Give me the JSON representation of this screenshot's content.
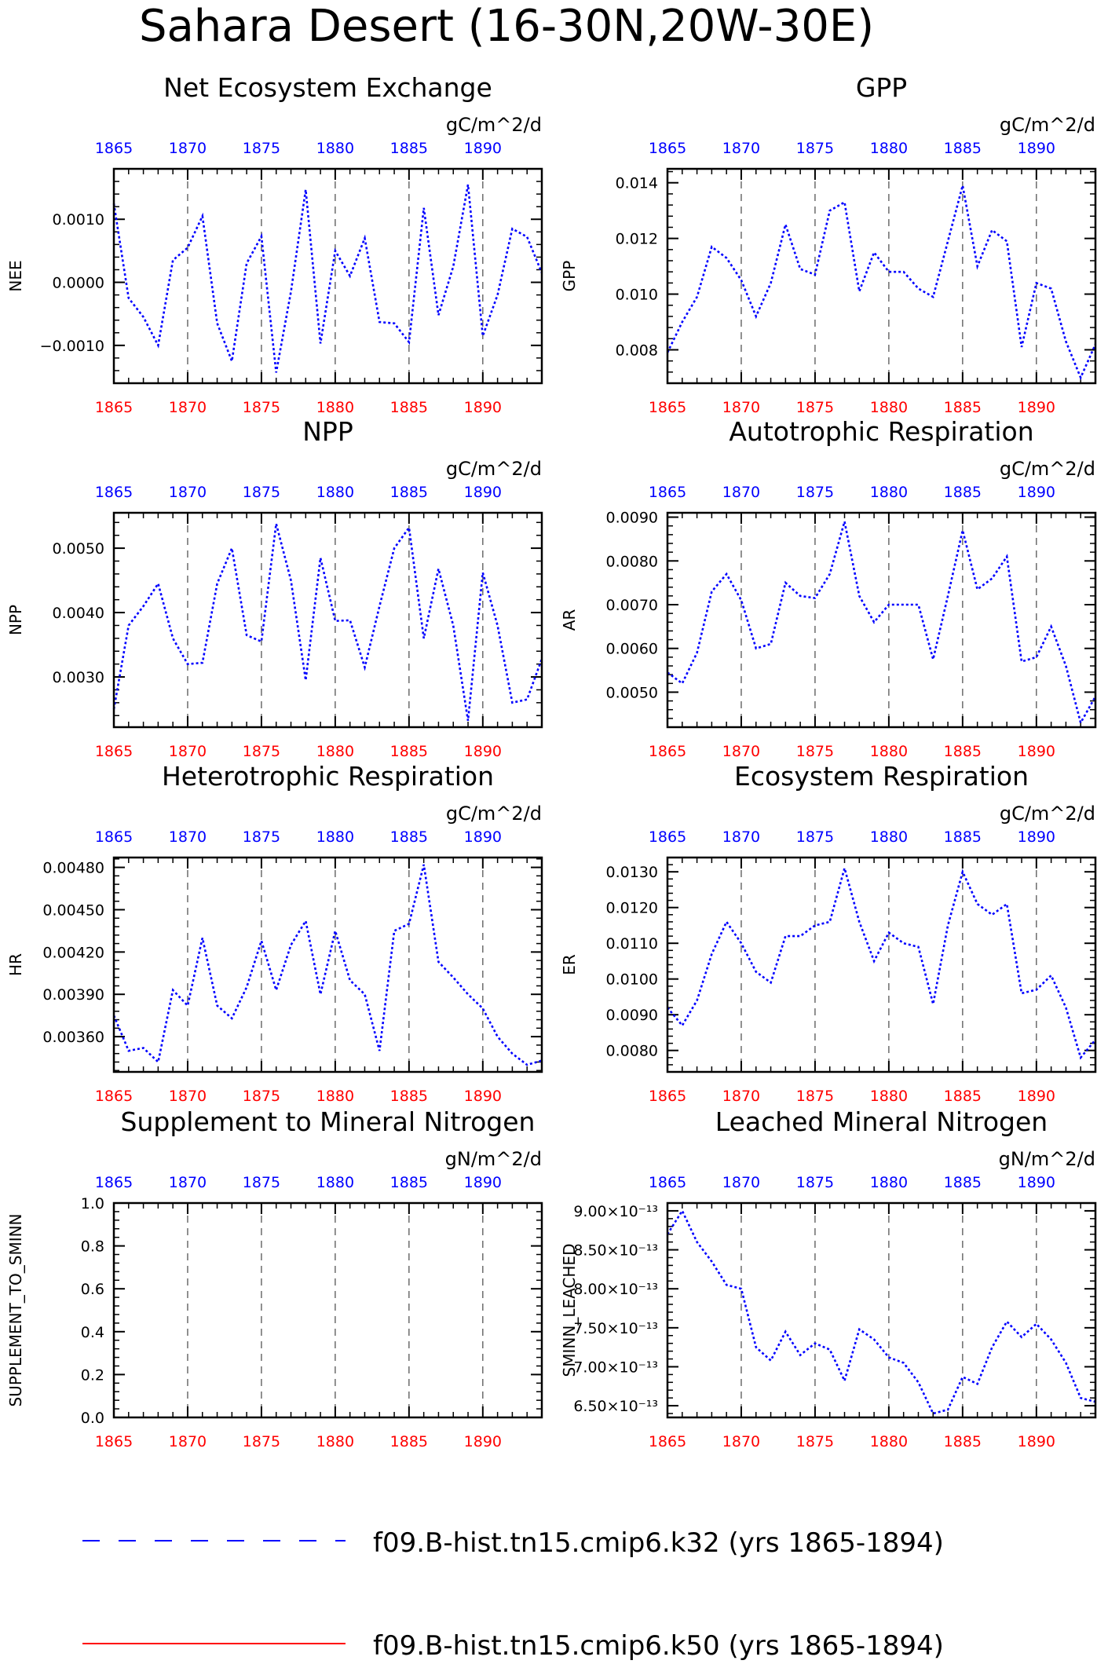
{
  "title": "Sahara Desert (16-30N,20W-30E)",
  "x_ticks": [
    "1865",
    "1870",
    "1875",
    "1880",
    "1885",
    "1890"
  ],
  "colors": {
    "axis_bottom": "#ff0000",
    "axis_top": "#0000ff",
    "series_k32": "#0000ff",
    "series_k50": "#ff0000"
  },
  "legend": [
    {
      "label": "f09.B-hist.tn15.cmip6.k32 (yrs 1865-1894)",
      "color": "#0000ff",
      "style": "dashed"
    },
    {
      "label": "f09.B-hist.tn15.cmip6.k50 (yrs 1865-1894)",
      "color": "#ff0000",
      "style": "solid"
    }
  ],
  "chart_data": [
    {
      "type": "line",
      "title": "Net Ecosystem Exchange",
      "ylabel": "NEE",
      "units": "gC/m^2/d",
      "ylim": [
        -0.0016,
        0.0018
      ],
      "xlim": [
        1865,
        1894
      ],
      "grid": "vertical dashed",
      "yticks": [
        -0.001,
        0.0,
        0.001
      ],
      "ytick_labels": [
        "−0.0010",
        "0.0000",
        "0.0010"
      ],
      "x": [
        1865,
        1866,
        1867,
        1868,
        1869,
        1870,
        1871,
        1872,
        1873,
        1874,
        1875,
        1876,
        1877,
        1878,
        1879,
        1880,
        1881,
        1882,
        1883,
        1884,
        1885,
        1886,
        1887,
        1888,
        1889,
        1890,
        1891,
        1892,
        1893,
        1894
      ],
      "series": [
        {
          "name": "f09.B-hist.tn15.cmip6.k32 (yrs 1865-1894)",
          "values": [
            0.00125,
            -0.00025,
            -0.00055,
            -0.001,
            0.00035,
            0.00055,
            0.00105,
            -0.00065,
            -0.00125,
            0.0003,
            0.00073,
            -0.00143,
            -0.00015,
            0.00147,
            -0.00097,
            0.0005,
            0.0001,
            0.0007,
            -0.00063,
            -0.00065,
            -0.00095,
            0.00118,
            -0.00052,
            0.00025,
            0.00155,
            -0.00085,
            -0.0002,
            0.00085,
            0.00072,
            0.00015
          ]
        }
      ]
    },
    {
      "type": "line",
      "title": "GPP",
      "ylabel": "GPP",
      "units": "gC/m^2/d",
      "ylim": [
        0.0068,
        0.0145
      ],
      "xlim": [
        1865,
        1894
      ],
      "grid": "vertical dashed",
      "yticks": [
        0.008,
        0.01,
        0.012,
        0.014
      ],
      "ytick_labels": [
        "0.008",
        "0.010",
        "0.012",
        "0.014"
      ],
      "x": [
        1865,
        1866,
        1867,
        1868,
        1869,
        1870,
        1871,
        1872,
        1873,
        1874,
        1875,
        1876,
        1877,
        1878,
        1879,
        1880,
        1881,
        1882,
        1883,
        1884,
        1885,
        1886,
        1887,
        1888,
        1889,
        1890,
        1891,
        1892,
        1893,
        1894
      ],
      "series": [
        {
          "name": "f09.B-hist.tn15.cmip6.k32 (yrs 1865-1894)",
          "values": [
            0.0079,
            0.009,
            0.0099,
            0.0117,
            0.0113,
            0.0105,
            0.0092,
            0.0104,
            0.0125,
            0.0109,
            0.0107,
            0.013,
            0.0133,
            0.0101,
            0.0115,
            0.0108,
            0.0108,
            0.0102,
            0.0099,
            0.0119,
            0.0139,
            0.011,
            0.0123,
            0.0119,
            0.0081,
            0.0104,
            0.0102,
            0.0083,
            0.007,
            0.0082
          ]
        }
      ]
    },
    {
      "type": "line",
      "title": "NPP",
      "ylabel": "NPP",
      "units": "gC/m^2/d",
      "ylim": [
        0.00222,
        0.00555
      ],
      "xlim": [
        1865,
        1894
      ],
      "grid": "vertical dashed",
      "yticks": [
        0.003,
        0.004,
        0.005
      ],
      "ytick_labels": [
        "0.0030",
        "0.0040",
        "0.0050"
      ],
      "x": [
        1865,
        1866,
        1867,
        1868,
        1869,
        1870,
        1871,
        1872,
        1873,
        1874,
        1875,
        1876,
        1877,
        1878,
        1879,
        1880,
        1881,
        1882,
        1883,
        1884,
        1885,
        1886,
        1887,
        1888,
        1889,
        1890,
        1891,
        1892,
        1893,
        1894
      ],
      "series": [
        {
          "name": "f09.B-hist.tn15.cmip6.k32 (yrs 1865-1894)",
          "values": [
            0.0025,
            0.0038,
            0.0041,
            0.00445,
            0.0036,
            0.0032,
            0.00322,
            0.00445,
            0.005,
            0.00365,
            0.00355,
            0.00538,
            0.0045,
            0.00295,
            0.00485,
            0.00387,
            0.00388,
            0.00315,
            0.0041,
            0.005,
            0.00532,
            0.0036,
            0.00468,
            0.0038,
            0.00232,
            0.00462,
            0.0038,
            0.0026,
            0.00265,
            0.00328
          ]
        }
      ]
    },
    {
      "type": "line",
      "title": "Autotrophic Respiration",
      "ylabel": "AR",
      "units": "gC/m^2/d",
      "ylim": [
        0.0042,
        0.0091
      ],
      "xlim": [
        1865,
        1894
      ],
      "grid": "vertical dashed",
      "yticks": [
        0.005,
        0.006,
        0.007,
        0.008,
        0.009
      ],
      "ytick_labels": [
        "0.0050",
        "0.0060",
        "0.0070",
        "0.0080",
        "0.0090"
      ],
      "x": [
        1865,
        1866,
        1867,
        1868,
        1869,
        1870,
        1871,
        1872,
        1873,
        1874,
        1875,
        1876,
        1877,
        1878,
        1879,
        1880,
        1881,
        1882,
        1883,
        1884,
        1885,
        1886,
        1887,
        1888,
        1889,
        1890,
        1891,
        1892,
        1893,
        1894
      ],
      "series": [
        {
          "name": "f09.B-hist.tn15.cmip6.k32 (yrs 1865-1894)",
          "values": [
            0.00545,
            0.0052,
            0.0059,
            0.0073,
            0.0077,
            0.0071,
            0.006,
            0.0061,
            0.0075,
            0.0072,
            0.00715,
            0.0077,
            0.0089,
            0.0072,
            0.0066,
            0.007,
            0.007,
            0.007,
            0.00575,
            0.0072,
            0.0087,
            0.00735,
            0.0076,
            0.0081,
            0.0057,
            0.0058,
            0.0065,
            0.0056,
            0.0043,
            0.0049
          ]
        }
      ]
    },
    {
      "type": "line",
      "title": "Heterotrophic Respiration",
      "ylabel": "HR",
      "units": "gC/m^2/d",
      "ylim": [
        0.00335,
        0.00487
      ],
      "xlim": [
        1865,
        1894
      ],
      "grid": "vertical dashed",
      "yticks": [
        0.0036,
        0.0039,
        0.0042,
        0.0045,
        0.0048
      ],
      "ytick_labels": [
        "0.00360",
        "0.00390",
        "0.00420",
        "0.00450",
        "0.00480"
      ],
      "x": [
        1865,
        1866,
        1867,
        1868,
        1869,
        1870,
        1871,
        1872,
        1873,
        1874,
        1875,
        1876,
        1877,
        1878,
        1879,
        1880,
        1881,
        1882,
        1883,
        1884,
        1885,
        1886,
        1887,
        1888,
        1889,
        1890,
        1891,
        1892,
        1893,
        1894
      ],
      "series": [
        {
          "name": "f09.B-hist.tn15.cmip6.k32 (yrs 1865-1894)",
          "values": [
            0.00375,
            0.0035,
            0.00352,
            0.00342,
            0.00393,
            0.00382,
            0.0043,
            0.00382,
            0.00373,
            0.00395,
            0.00428,
            0.00393,
            0.00425,
            0.00442,
            0.0039,
            0.00435,
            0.004,
            0.0039,
            0.0035,
            0.00435,
            0.0044,
            0.00482,
            0.00413,
            0.00402,
            0.0039,
            0.0038,
            0.0036,
            0.00348,
            0.0034,
            0.00343
          ]
        }
      ]
    },
    {
      "type": "line",
      "title": "Ecosystem Respiration",
      "ylabel": "ER",
      "units": "gC/m^2/d",
      "ylim": [
        0.0074,
        0.0134
      ],
      "xlim": [
        1865,
        1894
      ],
      "grid": "vertical dashed",
      "yticks": [
        0.008,
        0.009,
        0.01,
        0.011,
        0.012,
        0.013
      ],
      "ytick_labels": [
        "0.0080",
        "0.0090",
        "0.0100",
        "0.0110",
        "0.0120",
        "0.0130"
      ],
      "x": [
        1865,
        1866,
        1867,
        1868,
        1869,
        1870,
        1871,
        1872,
        1873,
        1874,
        1875,
        1876,
        1877,
        1878,
        1879,
        1880,
        1881,
        1882,
        1883,
        1884,
        1885,
        1886,
        1887,
        1888,
        1889,
        1890,
        1891,
        1892,
        1893,
        1894
      ],
      "series": [
        {
          "name": "f09.B-hist.tn15.cmip6.k32 (yrs 1865-1894)",
          "values": [
            0.0092,
            0.0087,
            0.0094,
            0.0107,
            0.0116,
            0.011,
            0.0102,
            0.0099,
            0.0112,
            0.0112,
            0.0115,
            0.0116,
            0.0131,
            0.0116,
            0.0105,
            0.0113,
            0.011,
            0.0109,
            0.0093,
            0.0115,
            0.013,
            0.0121,
            0.0118,
            0.0121,
            0.0096,
            0.0097,
            0.0101,
            0.0092,
            0.0078,
            0.0083
          ]
        }
      ]
    },
    {
      "type": "line",
      "title": "Supplement to Mineral Nitrogen",
      "ylabel": "SUPPLEMENT_TO_SMINN",
      "units": "gN/m^2/d",
      "ylim": [
        0.0,
        1.0
      ],
      "xlim": [
        1865,
        1894
      ],
      "grid": "vertical dashed",
      "yticks": [
        0.0,
        0.2,
        0.4,
        0.6,
        0.8,
        1.0
      ],
      "ytick_labels": [
        "0.0",
        "0.2",
        "0.4",
        "0.6",
        "0.8",
        "1.0"
      ],
      "x": [],
      "series": []
    },
    {
      "type": "line",
      "title": "Leached Mineral Nitrogen",
      "ylabel": "SMINN_LEACHED",
      "units": "gN/m^2/d",
      "ylim": [
        6.35e-13,
        9.1e-13
      ],
      "xlim": [
        1865,
        1894
      ],
      "grid": "vertical dashed",
      "yticks": [
        6.5e-13,
        7e-13,
        7.5e-13,
        8e-13,
        8.5e-13,
        9e-13
      ],
      "ytick_labels": [
        "6.50×10⁻¹³",
        "7.00×10⁻¹³",
        "7.50×10⁻¹³",
        "8.00×10⁻¹³",
        "8.50×10⁻¹³",
        "9.00×10⁻¹³"
      ],
      "x": [
        1865,
        1866,
        1867,
        1868,
        1869,
        1870,
        1871,
        1872,
        1873,
        1874,
        1875,
        1876,
        1877,
        1878,
        1879,
        1880,
        1881,
        1882,
        1883,
        1884,
        1885,
        1886,
        1887,
        1888,
        1889,
        1890,
        1891,
        1892,
        1893,
        1894
      ],
      "series": [
        {
          "name": "f09.B-hist.tn15.cmip6.k32 (yrs 1865-1894)",
          "values": [
            8.7e-13,
            9e-13,
            8.6e-13,
            8.35e-13,
            8.05e-13,
            8e-13,
            7.25e-13,
            7.08e-13,
            7.45e-13,
            7.15e-13,
            7.3e-13,
            7.22e-13,
            6.82e-13,
            7.48e-13,
            7.35e-13,
            7.12e-13,
            7.05e-13,
            6.8e-13,
            6.4e-13,
            6.45e-13,
            6.87e-13,
            6.78e-13,
            7.25e-13,
            7.58e-13,
            7.38e-13,
            7.55e-13,
            7.35e-13,
            7.05e-13,
            6.6e-13,
            6.55e-13
          ]
        }
      ]
    }
  ]
}
